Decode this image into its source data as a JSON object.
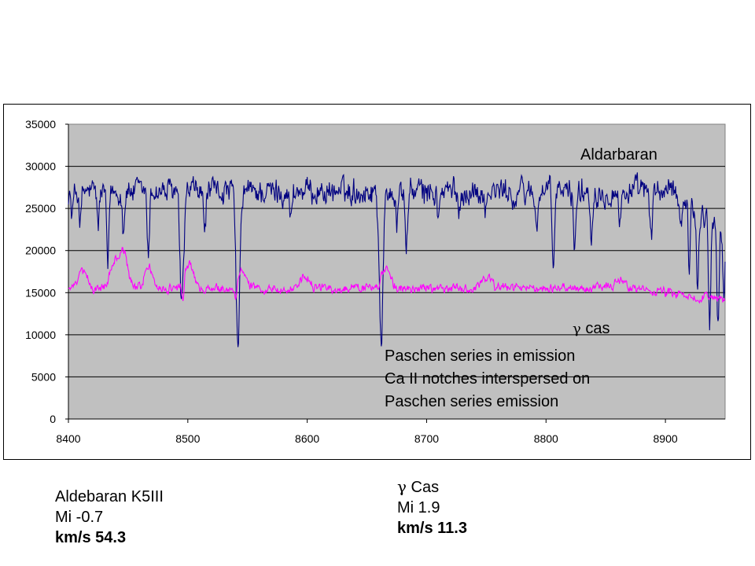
{
  "chart_data": {
    "type": "line",
    "x_range": [
      8400,
      8950
    ],
    "ylim": [
      0,
      35000
    ],
    "x_ticks": [
      8400,
      8500,
      8600,
      8700,
      8800,
      8900
    ],
    "y_ticks": [
      0,
      5000,
      10000,
      15000,
      20000,
      25000,
      30000,
      35000
    ],
    "x_tick_labels": [
      "8400",
      "8500",
      "8600",
      "8700",
      "8800",
      "8900"
    ],
    "y_tick_labels": [
      "0",
      "5000",
      "10000",
      "15000",
      "20000",
      "25000",
      "30000",
      "35000"
    ],
    "grid": "horizontal",
    "plot_background": "#c0c0c0",
    "series": [
      {
        "name": "Aldarbaran",
        "color": "#000080",
        "baseline": 27000,
        "noise": 1300,
        "absorption_lines": [
          {
            "x": 8403,
            "depth": 3000
          },
          {
            "x": 8410,
            "depth": 3500
          },
          {
            "x": 8425,
            "depth": 4000
          },
          {
            "x": 8433,
            "depth": 9500
          },
          {
            "x": 8446,
            "depth": 4500
          },
          {
            "x": 8467,
            "depth": 8000
          },
          {
            "x": 8495,
            "depth": 14000
          },
          {
            "x": 8514,
            "depth": 5000
          },
          {
            "x": 8542,
            "depth": 18500
          },
          {
            "x": 8586,
            "depth": 3500
          },
          {
            "x": 8662,
            "depth": 17500
          },
          {
            "x": 8675,
            "depth": 4000
          },
          {
            "x": 8683,
            "depth": 7000
          },
          {
            "x": 8710,
            "depth": 3500
          },
          {
            "x": 8727,
            "depth": 2500
          },
          {
            "x": 8750,
            "depth": 2000
          },
          {
            "x": 8774,
            "depth": 2000
          },
          {
            "x": 8792,
            "depth": 5000
          },
          {
            "x": 8806,
            "depth": 9500
          },
          {
            "x": 8824,
            "depth": 7000
          },
          {
            "x": 8838,
            "depth": 5000
          },
          {
            "x": 8862,
            "depth": 4000
          },
          {
            "x": 8888,
            "depth": 6500
          },
          {
            "x": 8913,
            "depth": 4000
          },
          {
            "x": 8920,
            "depth": 7000
          },
          {
            "x": 8927,
            "depth": 10000
          },
          {
            "x": 8937,
            "depth": 12000
          },
          {
            "x": 8944,
            "depth": 11000
          },
          {
            "x": 8949,
            "depth": 8000
          }
        ],
        "end_trend": {
          "start_x": 8910,
          "drop": 5000
        }
      },
      {
        "name": "γ cas",
        "color": "#ff00ff",
        "baseline": 15500,
        "noise": 450,
        "emission_peaks": [
          {
            "x": 8412,
            "height": 2000
          },
          {
            "x": 8438,
            "height": 3000
          },
          {
            "x": 8446,
            "height": 4200
          },
          {
            "x": 8467,
            "height": 2500
          },
          {
            "x": 8501,
            "height": 3000
          },
          {
            "x": 8546,
            "height": 2000
          },
          {
            "x": 8598,
            "height": 1500
          },
          {
            "x": 8666,
            "height": 2500
          },
          {
            "x": 8750,
            "height": 1500
          },
          {
            "x": 8862,
            "height": 1200
          }
        ],
        "absorption_lines": [
          {
            "x": 8496,
            "depth": 2500
          },
          {
            "x": 8540,
            "depth": 1500
          },
          {
            "x": 8660,
            "depth": 1000
          }
        ],
        "end_trend": {
          "start_x": 8880,
          "drop": 1500
        }
      }
    ],
    "annotations": {
      "aldebaran_label": "Aldarbaran",
      "gamma_cas_label_symbol": "γ",
      "gamma_cas_label_text": " cas",
      "paschen_line1": "Paschen series in emission",
      "paschen_line2": "Ca II notches interspersed on",
      "paschen_line3": "Paschen series emission"
    }
  },
  "captions": {
    "aldebaran": {
      "name": "Aldebaran K5III",
      "mag": "Mi -0.7",
      "velocity": "km/s 54.3"
    },
    "gamma_cas": {
      "symbol": "γ",
      "name": " Cas",
      "mag": "Mi 1.9",
      "velocity": "km/s 11.3"
    }
  }
}
